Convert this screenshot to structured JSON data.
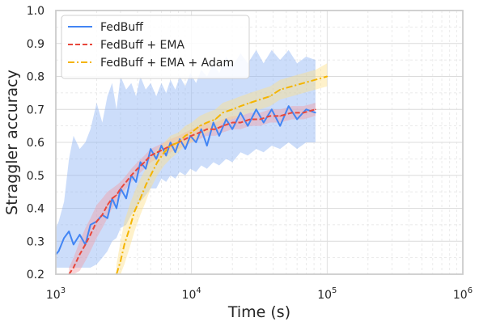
{
  "chart_data": {
    "type": "line",
    "xlabel": "Time (s)",
    "ylabel": "Straggler accuracy",
    "xscale": "log",
    "xlim": [
      1000,
      1000000
    ],
    "ylim": [
      0.2,
      1.0
    ],
    "xticks": [
      {
        "value": 1000,
        "base": "10",
        "exp": "3"
      },
      {
        "value": 10000,
        "base": "10",
        "exp": "4"
      },
      {
        "value": 100000,
        "base": "10",
        "exp": "5"
      },
      {
        "value": 1000000,
        "base": "10",
        "exp": "6"
      }
    ],
    "yticks": [
      {
        "value": 0.2,
        "label": "0.2"
      },
      {
        "value": 0.3,
        "label": "0.3"
      },
      {
        "value": 0.4,
        "label": "0.4"
      },
      {
        "value": 0.5,
        "label": "0.5"
      },
      {
        "value": 0.6,
        "label": "0.6"
      },
      {
        "value": 0.7,
        "label": "0.7"
      },
      {
        "value": 0.8,
        "label": "0.8"
      },
      {
        "value": 0.9,
        "label": "0.9"
      },
      {
        "value": 1.0,
        "label": "1.0"
      }
    ],
    "grid": true,
    "legend_position": "top-left",
    "series": [
      {
        "name": "FedBuff",
        "color": "#4285f4",
        "band_color": "#8fb3f5",
        "style": "solid",
        "x": [
          1000,
          1050,
          1150,
          1250,
          1350,
          1500,
          1650,
          1800,
          2000,
          2200,
          2400,
          2600,
          2800,
          3000,
          3300,
          3600,
          3900,
          4200,
          4600,
          5000,
          5500,
          6000,
          6500,
          7000,
          7600,
          8200,
          9000,
          9800,
          10800,
          11800,
          13000,
          14500,
          16000,
          18000,
          20000,
          23000,
          26000,
          30000,
          34000,
          39000,
          45000,
          52000,
          60000,
          70000,
          82000
        ],
        "y": [
          0.26,
          0.27,
          0.31,
          0.33,
          0.29,
          0.32,
          0.29,
          0.35,
          0.36,
          0.38,
          0.37,
          0.43,
          0.4,
          0.46,
          0.43,
          0.5,
          0.48,
          0.54,
          0.52,
          0.58,
          0.55,
          0.59,
          0.56,
          0.6,
          0.57,
          0.61,
          0.58,
          0.62,
          0.6,
          0.64,
          0.59,
          0.66,
          0.62,
          0.67,
          0.64,
          0.69,
          0.65,
          0.7,
          0.66,
          0.7,
          0.65,
          0.71,
          0.67,
          0.7,
          0.69
        ],
        "lower": [
          0.22,
          0.22,
          0.22,
          0.22,
          0.22,
          0.22,
          0.22,
          0.22,
          0.23,
          0.25,
          0.27,
          0.3,
          0.31,
          0.34,
          0.35,
          0.38,
          0.4,
          0.42,
          0.44,
          0.46,
          0.46,
          0.49,
          0.48,
          0.5,
          0.49,
          0.51,
          0.5,
          0.52,
          0.51,
          0.53,
          0.52,
          0.54,
          0.53,
          0.55,
          0.54,
          0.57,
          0.56,
          0.58,
          0.57,
          0.59,
          0.58,
          0.6,
          0.58,
          0.6,
          0.6
        ],
        "upper": [
          0.34,
          0.36,
          0.42,
          0.55,
          0.62,
          0.58,
          0.6,
          0.64,
          0.72,
          0.66,
          0.74,
          0.78,
          0.7,
          0.8,
          0.76,
          0.78,
          0.74,
          0.8,
          0.76,
          0.78,
          0.74,
          0.78,
          0.75,
          0.79,
          0.76,
          0.8,
          0.77,
          0.81,
          0.78,
          0.82,
          0.8,
          0.84,
          0.81,
          0.86,
          0.83,
          0.87,
          0.84,
          0.88,
          0.84,
          0.88,
          0.85,
          0.88,
          0.84,
          0.86,
          0.85
        ]
      },
      {
        "name": "FedBuff + EMA",
        "color": "#e8473b",
        "band_color": "#f0a0a8",
        "style": "dashed",
        "x": [
          1250,
          1350,
          1500,
          1650,
          1800,
          2000,
          2200,
          2400,
          2600,
          2800,
          3000,
          3300,
          3600,
          4000,
          4500,
          5000,
          5600,
          6300,
          7000,
          8000,
          9000,
          10000,
          11500,
          13000,
          15000,
          17000,
          20000,
          23000,
          27000,
          32000,
          38000,
          45000,
          55000,
          67000,
          82000
        ],
        "y": [
          0.2,
          0.22,
          0.26,
          0.29,
          0.32,
          0.36,
          0.38,
          0.41,
          0.43,
          0.44,
          0.46,
          0.48,
          0.5,
          0.52,
          0.54,
          0.56,
          0.57,
          0.58,
          0.59,
          0.6,
          0.61,
          0.62,
          0.63,
          0.64,
          0.64,
          0.65,
          0.66,
          0.66,
          0.67,
          0.67,
          0.68,
          0.68,
          0.69,
          0.69,
          0.7
        ],
        "lower": [
          0.2,
          0.2,
          0.21,
          0.24,
          0.27,
          0.31,
          0.34,
          0.37,
          0.4,
          0.42,
          0.44,
          0.46,
          0.48,
          0.5,
          0.52,
          0.54,
          0.55,
          0.56,
          0.57,
          0.58,
          0.59,
          0.6,
          0.61,
          0.62,
          0.62,
          0.63,
          0.64,
          0.64,
          0.65,
          0.65,
          0.66,
          0.66,
          0.67,
          0.67,
          0.68
        ],
        "upper": [
          0.22,
          0.25,
          0.3,
          0.34,
          0.37,
          0.41,
          0.43,
          0.45,
          0.46,
          0.47,
          0.48,
          0.5,
          0.52,
          0.54,
          0.56,
          0.58,
          0.59,
          0.6,
          0.61,
          0.62,
          0.63,
          0.64,
          0.65,
          0.66,
          0.66,
          0.67,
          0.68,
          0.68,
          0.69,
          0.69,
          0.7,
          0.7,
          0.71,
          0.71,
          0.72
        ]
      },
      {
        "name": "FedBuff + EMA + Adam",
        "color": "#f4b400",
        "band_color": "#fce08a",
        "style": "dashdot",
        "x": [
          2800,
          3000,
          3200,
          3500,
          3800,
          4200,
          4600,
          5000,
          5600,
          6300,
          7000,
          8000,
          9000,
          10000,
          11500,
          13000,
          15000,
          17000,
          20000,
          23000,
          27000,
          32000,
          38000,
          45000,
          55000,
          67000,
          82000,
          100000
        ],
        "y": [
          0.2,
          0.24,
          0.29,
          0.34,
          0.39,
          0.43,
          0.47,
          0.5,
          0.54,
          0.57,
          0.59,
          0.6,
          0.62,
          0.63,
          0.65,
          0.66,
          0.67,
          0.69,
          0.7,
          0.71,
          0.72,
          0.73,
          0.74,
          0.76,
          0.77,
          0.78,
          0.79,
          0.8
        ],
        "lower": [
          0.2,
          0.2,
          0.23,
          0.28,
          0.33,
          0.38,
          0.42,
          0.46,
          0.5,
          0.53,
          0.55,
          0.57,
          0.59,
          0.6,
          0.62,
          0.63,
          0.64,
          0.66,
          0.67,
          0.68,
          0.69,
          0.7,
          0.71,
          0.73,
          0.74,
          0.75,
          0.76,
          0.77
        ],
        "upper": [
          0.23,
          0.3,
          0.36,
          0.41,
          0.45,
          0.49,
          0.52,
          0.55,
          0.58,
          0.6,
          0.62,
          0.63,
          0.65,
          0.66,
          0.68,
          0.69,
          0.7,
          0.72,
          0.73,
          0.74,
          0.75,
          0.76,
          0.77,
          0.79,
          0.8,
          0.81,
          0.82,
          0.84
        ]
      }
    ]
  }
}
